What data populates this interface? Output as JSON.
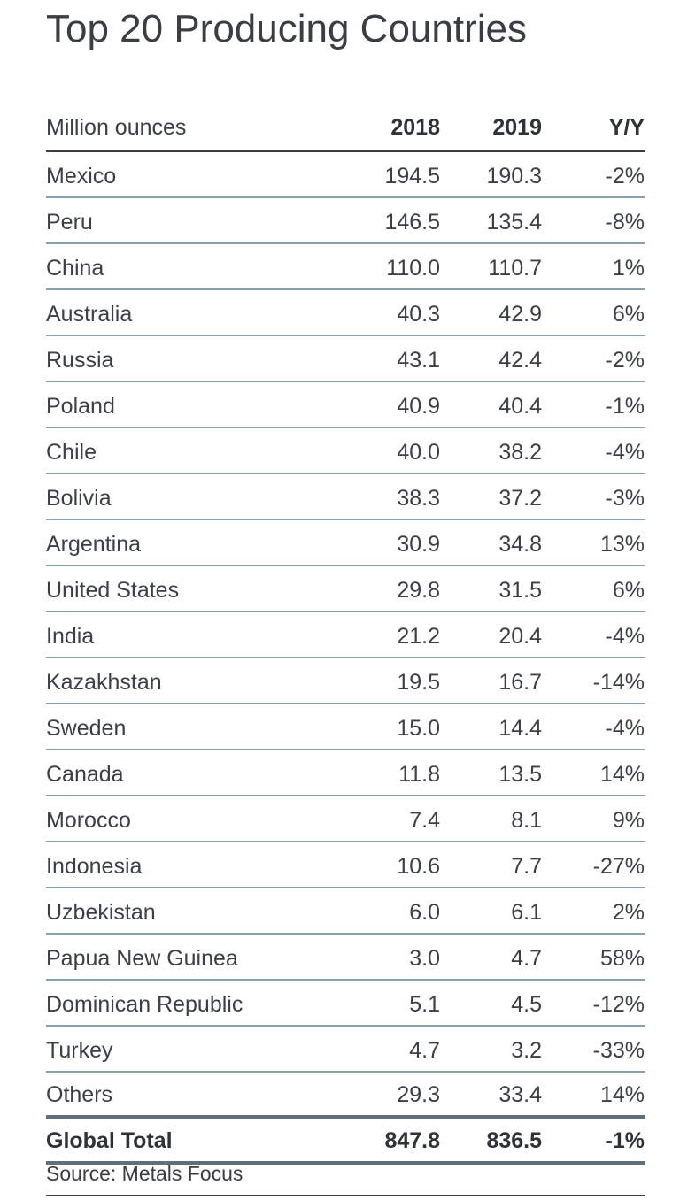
{
  "title": "Top 20 Producing Countries",
  "table": {
    "headers": [
      "Million ounces",
      "2018",
      "2019",
      "Y/Y"
    ],
    "rows": [
      [
        "Mexico",
        "194.5",
        "190.3",
        "-2%"
      ],
      [
        "Peru",
        "146.5",
        "135.4",
        "-8%"
      ],
      [
        "China",
        "110.0",
        "110.7",
        "1%"
      ],
      [
        "Australia",
        "40.3",
        "42.9",
        "6%"
      ],
      [
        "Russia",
        "43.1",
        "42.4",
        "-2%"
      ],
      [
        "Poland",
        "40.9",
        "40.4",
        "-1%"
      ],
      [
        "Chile",
        "40.0",
        "38.2",
        "-4%"
      ],
      [
        "Bolivia",
        "38.3",
        "37.2",
        "-3%"
      ],
      [
        "Argentina",
        "30.9",
        "34.8",
        "13%"
      ],
      [
        "United States",
        "29.8",
        "31.5",
        "6%"
      ],
      [
        "India",
        "21.2",
        "20.4",
        "-4%"
      ],
      [
        "Kazakhstan",
        "19.5",
        "16.7",
        "-14%"
      ],
      [
        "Sweden",
        "15.0",
        "14.4",
        "-4%"
      ],
      [
        "Canada",
        "11.8",
        "13.5",
        "14%"
      ],
      [
        "Morocco",
        "7.4",
        "8.1",
        "9%"
      ],
      [
        "Indonesia",
        "10.6",
        "7.7",
        "-27%"
      ],
      [
        "Uzbekistan",
        "6.0",
        "6.1",
        "2%"
      ],
      [
        "Papua New Guinea",
        "3.0",
        "4.7",
        "58%"
      ],
      [
        "Dominican Republic",
        "5.1",
        "4.5",
        "-12%"
      ],
      [
        "Turkey",
        "4.7",
        "3.2",
        "-33%"
      ],
      [
        "Others",
        "29.3",
        "33.4",
        "14%"
      ]
    ],
    "total": [
      "Global Total",
      "847.8",
      "836.5",
      "-1%"
    ]
  },
  "source": "Source: Metals Focus",
  "colors": {
    "text": "#3c4046",
    "row_rule": "#87a0b0",
    "total_rule": "#5f6f7c"
  }
}
